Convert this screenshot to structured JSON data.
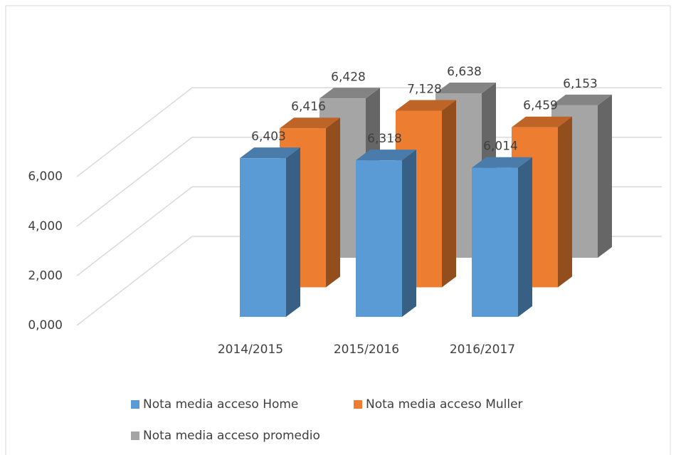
{
  "chart_data": {
    "type": "bar3d",
    "categories": [
      "2014/2015",
      "2015/2016",
      "2016/2017"
    ],
    "series": [
      {
        "name": "Nota media acceso Home",
        "color": "#5b9bd5",
        "values": [
          6.403,
          6.318,
          6.014
        ],
        "value_labels": [
          "6,403",
          "6,318",
          "6,014"
        ]
      },
      {
        "name": "Nota media acceso Muller",
        "color": "#ed7d31",
        "values": [
          6.416,
          7.128,
          6.459
        ],
        "value_labels": [
          "6,416",
          "7,128",
          "6,459"
        ]
      },
      {
        "name": "Nota media acceso promedio",
        "color": "#a5a5a5",
        "values": [
          6.428,
          6.638,
          6.153
        ],
        "value_labels": [
          "6,428",
          "6,638",
          "6,153"
        ]
      }
    ],
    "ylim": [
      0,
      6
    ],
    "yticks": [
      {
        "value": 0,
        "label": "0,000"
      },
      {
        "value": 2,
        "label": "2,000"
      },
      {
        "value": 4,
        "label": "4,000"
      },
      {
        "value": 6,
        "label": "6,000"
      }
    ],
    "grid": true,
    "legend": "bottom"
  }
}
